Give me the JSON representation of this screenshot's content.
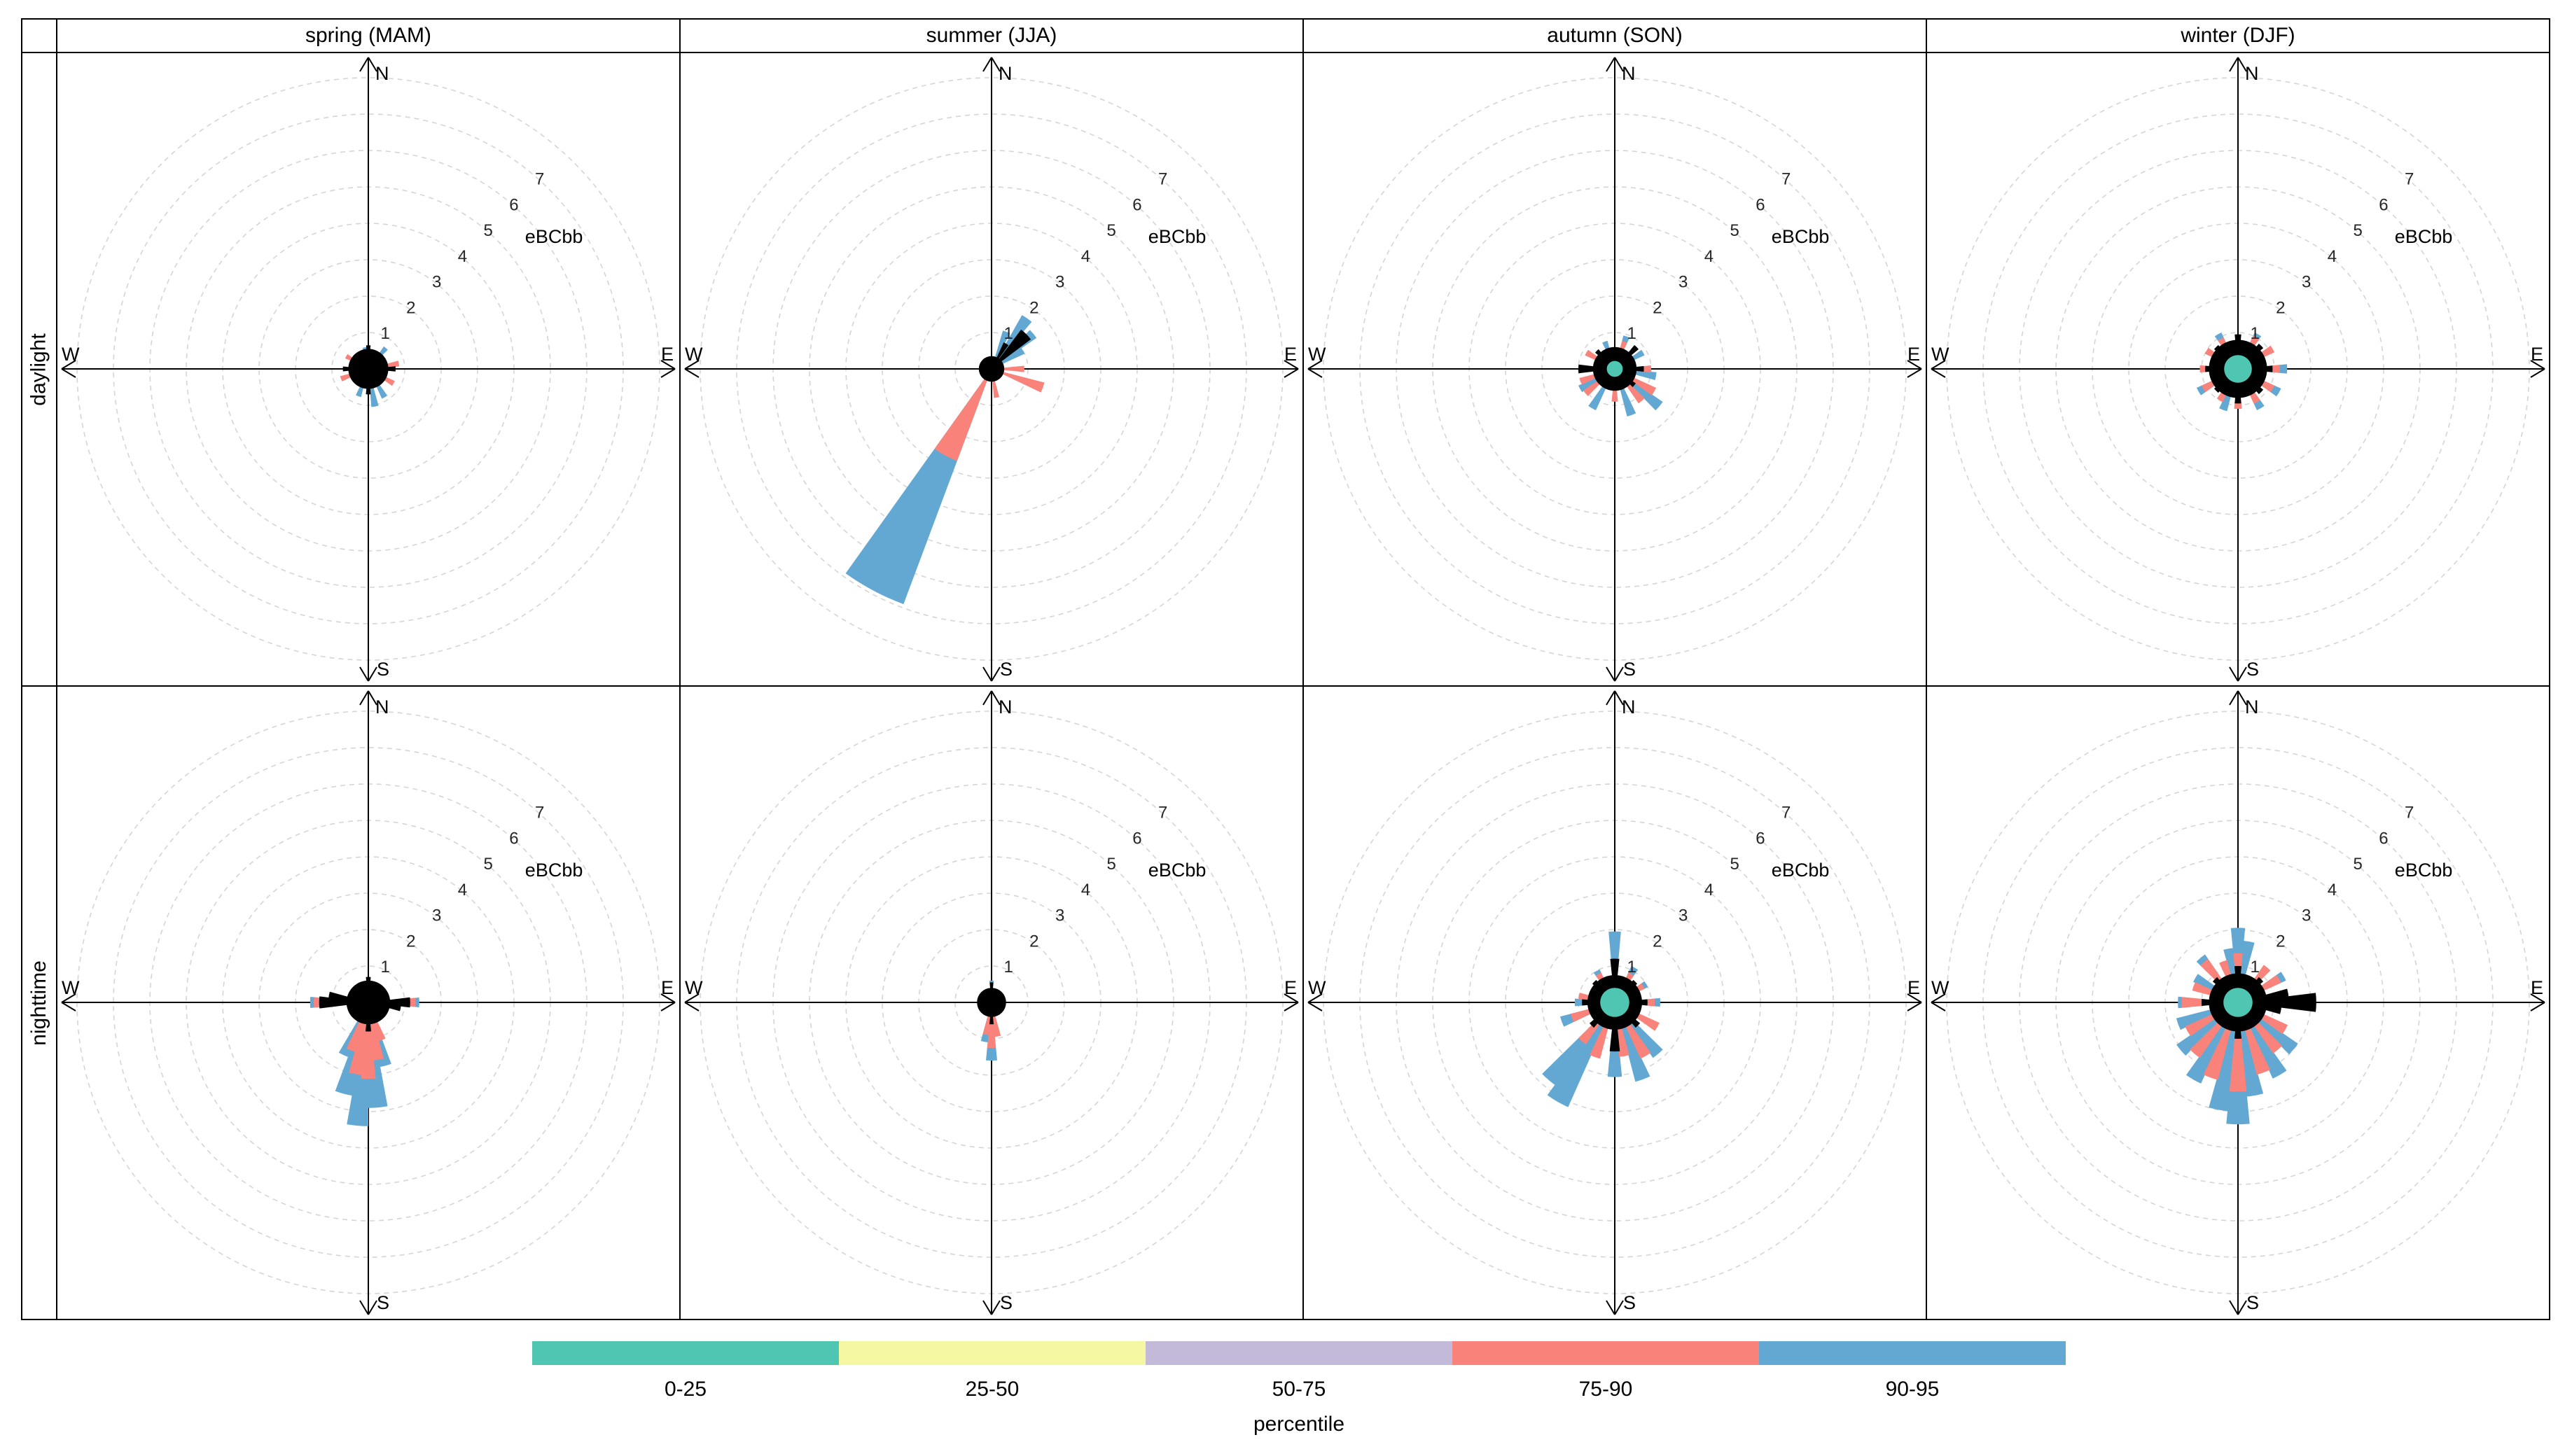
{
  "strip": {
    "cols": [
      "spring (MAM)",
      "summer (JJA)",
      "autumn (SON)",
      "winter (DJF)"
    ],
    "rows": [
      "daylight",
      "nighttime"
    ]
  },
  "axis": {
    "compass": [
      "N",
      "E",
      "S",
      "W"
    ],
    "ticks": [
      "1",
      "2",
      "3",
      "4",
      "5",
      "6",
      "7"
    ],
    "unit_label": "eBCbb"
  },
  "legend": {
    "title": "percentile",
    "entries": [
      {
        "label": "0-25",
        "color": "#4FC6B2"
      },
      {
        "label": "25-50",
        "color": "#F6F7A2"
      },
      {
        "label": "50-75",
        "color": "#C2BAD8"
      },
      {
        "label": "75-90",
        "color": "#F9837A"
      },
      {
        "label": "90-95",
        "color": "#62A8D2"
      }
    ]
  },
  "chart_data": {
    "type": "polar-percentile-rose-grid",
    "pollutant_label": "eBCbb",
    "radial_ticks": [
      1,
      2,
      3,
      4,
      5,
      6,
      7
    ],
    "radial_max": 8,
    "compass": [
      "N",
      "E",
      "S",
      "W"
    ],
    "columns": [
      "spring (MAM)",
      "summer (JJA)",
      "autumn (SON)",
      "winter (DJF)"
    ],
    "rows": [
      "daylight",
      "nighttime"
    ],
    "percentile_bands": [
      {
        "label": "0-25",
        "color": "#4FC6B2"
      },
      {
        "label": "25-50",
        "color": "#F6F7A2"
      },
      {
        "label": "50-75",
        "color": "#C2BAD8"
      },
      {
        "label": "75-90",
        "color": "#F9837A"
      },
      {
        "label": "90-95",
        "color": "#62A8D2"
      }
    ],
    "colors": {
      "teal": "#4FC6B2",
      "yellow": "#F6F7A2",
      "purple": "#C2BAD8",
      "salmon": "#F9837A",
      "blue": "#62A8D2",
      "black": "#000000",
      "grid": "#d5d5d5",
      "tick_text": "#262626"
    },
    "panels": [
      {
        "row": "daylight",
        "column": "spring (MAM)",
        "black_core": 0.55,
        "teal_core": 0,
        "petals": [
          {
            "c": "blue",
            "d": 170,
            "r": 1.05
          },
          {
            "c": "blue",
            "d": 150,
            "r": 0.9
          },
          {
            "c": "blue",
            "d": 40,
            "r": 0.75
          },
          {
            "c": "blue",
            "d": 200,
            "r": 0.8
          },
          {
            "c": "blue",
            "d": 350,
            "r": 0.6
          },
          {
            "c": "salmon",
            "d": 80,
            "r": 0.85
          },
          {
            "c": "salmon",
            "d": 120,
            "r": 0.8
          },
          {
            "c": "salmon",
            "d": 250,
            "r": 0.8
          },
          {
            "c": "salmon",
            "d": 300,
            "r": 0.7
          },
          {
            "c": "black",
            "d": 90,
            "r": 0.75
          },
          {
            "c": "black",
            "d": 270,
            "r": 0.7
          },
          {
            "c": "black",
            "d": 0,
            "r": 0.65
          },
          {
            "c": "black",
            "d": 180,
            "r": 0.7
          }
        ]
      },
      {
        "row": "daylight",
        "column": "summer (JJA)",
        "black_core": 0.35,
        "teal_core": 0,
        "petals": [
          {
            "c": "blue",
            "d": 208,
            "r": 6.9,
            "w": 15
          },
          {
            "c": "blue",
            "d": 35,
            "r": 1.7
          },
          {
            "c": "blue",
            "d": 50,
            "r": 1.5
          },
          {
            "c": "blue",
            "d": 22,
            "r": 1.1
          },
          {
            "c": "blue",
            "d": 60,
            "r": 1.0
          },
          {
            "c": "salmon",
            "d": 208,
            "r": 2.7,
            "w": 15
          },
          {
            "c": "salmon",
            "d": 110,
            "r": 1.5
          },
          {
            "c": "salmon",
            "d": 90,
            "r": 0.9
          },
          {
            "c": "salmon",
            "d": 170,
            "r": 0.8
          },
          {
            "c": "black",
            "d": 45,
            "r": 1.35,
            "w": 16
          },
          {
            "c": "black",
            "d": 30,
            "r": 0.8
          }
        ]
      },
      {
        "row": "daylight",
        "column": "autumn (SON)",
        "black_core": 0.6,
        "teal_core": 0.22,
        "petals": [
          {
            "c": "blue",
            "d": 130,
            "r": 1.6
          },
          {
            "c": "blue",
            "d": 160,
            "r": 1.35
          },
          {
            "c": "blue",
            "d": 210,
            "r": 1.25
          },
          {
            "c": "blue",
            "d": 100,
            "r": 1.15
          },
          {
            "c": "blue",
            "d": 20,
            "r": 0.95
          },
          {
            "c": "blue",
            "d": 340,
            "r": 0.8
          },
          {
            "c": "blue",
            "d": 240,
            "r": 1.1
          },
          {
            "c": "blue",
            "d": 60,
            "r": 0.9
          },
          {
            "c": "salmon",
            "d": 120,
            "r": 1.25
          },
          {
            "c": "salmon",
            "d": 140,
            "r": 1.15
          },
          {
            "c": "salmon",
            "d": 230,
            "r": 1.05
          },
          {
            "c": "salmon",
            "d": 90,
            "r": 1.0
          },
          {
            "c": "salmon",
            "d": 300,
            "r": 0.9
          },
          {
            "c": "salmon",
            "d": 20,
            "r": 0.8
          },
          {
            "c": "salmon",
            "d": 180,
            "r": 0.9
          },
          {
            "c": "salmon",
            "d": 250,
            "r": 1.0
          },
          {
            "c": "black",
            "d": 270,
            "r": 1.0,
            "w": 14
          },
          {
            "c": "black",
            "d": 45,
            "r": 0.85
          },
          {
            "c": "black",
            "d": 90,
            "r": 0.8
          },
          {
            "c": "black",
            "d": 130,
            "r": 0.7
          },
          {
            "c": "black",
            "d": 315,
            "r": 0.7
          }
        ]
      },
      {
        "row": "daylight",
        "column": "winter (DJF)",
        "black_core": 0.8,
        "teal_core": 0.38,
        "petals": [
          {
            "c": "blue",
            "d": 90,
            "r": 1.35
          },
          {
            "c": "blue",
            "d": 150,
            "r": 1.25
          },
          {
            "c": "blue",
            "d": 240,
            "r": 1.25
          },
          {
            "c": "blue",
            "d": 330,
            "r": 1.1
          },
          {
            "c": "blue",
            "d": 30,
            "r": 1.1
          },
          {
            "c": "blue",
            "d": 200,
            "r": 1.2
          },
          {
            "c": "blue",
            "d": 120,
            "r": 1.3
          },
          {
            "c": "salmon",
            "d": 60,
            "r": 1.1
          },
          {
            "c": "salmon",
            "d": 90,
            "r": 1.15
          },
          {
            "c": "salmon",
            "d": 120,
            "r": 1.1
          },
          {
            "c": "salmon",
            "d": 150,
            "r": 1.05
          },
          {
            "c": "salmon",
            "d": 180,
            "r": 1.1
          },
          {
            "c": "salmon",
            "d": 210,
            "r": 1.0
          },
          {
            "c": "salmon",
            "d": 240,
            "r": 1.1
          },
          {
            "c": "salmon",
            "d": 270,
            "r": 1.05
          },
          {
            "c": "salmon",
            "d": 300,
            "r": 1.0
          },
          {
            "c": "salmon",
            "d": 330,
            "r": 0.95
          },
          {
            "c": "salmon",
            "d": 30,
            "r": 1.0
          },
          {
            "c": "black",
            "d": 0,
            "r": 0.95
          },
          {
            "c": "black",
            "d": 45,
            "r": 0.9
          },
          {
            "c": "black",
            "d": 90,
            "r": 0.95
          },
          {
            "c": "black",
            "d": 135,
            "r": 0.9
          },
          {
            "c": "black",
            "d": 180,
            "r": 0.95
          },
          {
            "c": "black",
            "d": 225,
            "r": 0.85
          },
          {
            "c": "black",
            "d": 270,
            "r": 0.9
          },
          {
            "c": "black",
            "d": 315,
            "r": 0.85
          }
        ]
      },
      {
        "row": "nighttime",
        "column": "spring (MAM)",
        "black_core": 0.6,
        "teal_core": 0,
        "petals": [
          {
            "c": "blue",
            "d": 185,
            "r": 3.4,
            "w": 10
          },
          {
            "c": "blue",
            "d": 175,
            "r": 2.9
          },
          {
            "c": "blue",
            "d": 195,
            "r": 2.6
          },
          {
            "c": "blue",
            "d": 165,
            "r": 1.8
          },
          {
            "c": "blue",
            "d": 205,
            "r": 1.6
          },
          {
            "c": "blue",
            "d": 90,
            "r": 1.4
          },
          {
            "c": "blue",
            "d": 270,
            "r": 1.6
          },
          {
            "c": "salmon",
            "d": 180,
            "r": 2.1
          },
          {
            "c": "salmon",
            "d": 190,
            "r": 2.0
          },
          {
            "c": "salmon",
            "d": 170,
            "r": 1.6
          },
          {
            "c": "salmon",
            "d": 200,
            "r": 1.4
          },
          {
            "c": "salmon",
            "d": 160,
            "r": 1.1
          },
          {
            "c": "salmon",
            "d": 90,
            "r": 1.3
          },
          {
            "c": "salmon",
            "d": 270,
            "r": 1.5
          },
          {
            "c": "black",
            "d": 90,
            "r": 1.15,
            "w": 14
          },
          {
            "c": "black",
            "d": 270,
            "r": 1.35,
            "w": 14
          },
          {
            "c": "black",
            "d": 280,
            "r": 1.1
          },
          {
            "c": "black",
            "d": 100,
            "r": 0.9
          },
          {
            "c": "black",
            "d": 0,
            "r": 0.7
          },
          {
            "c": "black",
            "d": 180,
            "r": 0.8
          }
        ]
      },
      {
        "row": "nighttime",
        "column": "summer (JJA)",
        "black_core": 0.4,
        "teal_core": 0,
        "petals": [
          {
            "c": "blue",
            "d": 180,
            "r": 1.6
          },
          {
            "c": "blue",
            "d": 190,
            "r": 1.1
          },
          {
            "c": "blue",
            "d": 0,
            "r": 0.6
          },
          {
            "c": "salmon",
            "d": 180,
            "r": 1.25
          },
          {
            "c": "salmon",
            "d": 170,
            "r": 0.95
          },
          {
            "c": "salmon",
            "d": 190,
            "r": 0.9
          },
          {
            "c": "black",
            "d": 0,
            "r": 0.55
          },
          {
            "c": "black",
            "d": 180,
            "r": 0.6
          }
        ]
      },
      {
        "row": "nighttime",
        "column": "autumn (SON)",
        "black_core": 0.75,
        "teal_core": 0.4,
        "petals": [
          {
            "c": "blue",
            "d": 0,
            "r": 1.95,
            "w": 10
          },
          {
            "c": "blue",
            "d": 210,
            "r": 3.15,
            "w": 12
          },
          {
            "c": "blue",
            "d": 220,
            "r": 2.8
          },
          {
            "c": "blue",
            "d": 160,
            "r": 2.25
          },
          {
            "c": "blue",
            "d": 180,
            "r": 2.05
          },
          {
            "c": "blue",
            "d": 140,
            "r": 1.85
          },
          {
            "c": "blue",
            "d": 250,
            "r": 1.55
          },
          {
            "c": "blue",
            "d": 90,
            "r": 1.25
          },
          {
            "c": "blue",
            "d": 270,
            "r": 1.1
          },
          {
            "c": "blue",
            "d": 60,
            "r": 1.0
          },
          {
            "c": "blue",
            "d": 30,
            "r": 1.1
          },
          {
            "c": "blue",
            "d": 330,
            "r": 1.0
          },
          {
            "c": "salmon",
            "d": 150,
            "r": 1.7
          },
          {
            "c": "salmon",
            "d": 200,
            "r": 1.6
          },
          {
            "c": "salmon",
            "d": 120,
            "r": 1.35
          },
          {
            "c": "salmon",
            "d": 250,
            "r": 1.25
          },
          {
            "c": "salmon",
            "d": 90,
            "r": 1.1
          },
          {
            "c": "salmon",
            "d": 170,
            "r": 1.5
          },
          {
            "c": "salmon",
            "d": 220,
            "r": 1.4
          },
          {
            "c": "salmon",
            "d": 280,
            "r": 1.0
          },
          {
            "c": "salmon",
            "d": 60,
            "r": 0.9
          },
          {
            "c": "salmon",
            "d": 330,
            "r": 0.9
          },
          {
            "c": "salmon",
            "d": 30,
            "r": 0.9
          },
          {
            "c": "black",
            "d": 0,
            "r": 1.2,
            "w": 12
          },
          {
            "c": "black",
            "d": 180,
            "r": 1.35,
            "w": 12
          },
          {
            "c": "black",
            "d": 90,
            "r": 0.9
          },
          {
            "c": "black",
            "d": 270,
            "r": 0.9
          },
          {
            "c": "black",
            "d": 45,
            "r": 0.8
          },
          {
            "c": "black",
            "d": 135,
            "r": 0.9
          },
          {
            "c": "black",
            "d": 225,
            "r": 0.9
          },
          {
            "c": "black",
            "d": 315,
            "r": 0.8
          }
        ]
      },
      {
        "row": "nighttime",
        "column": "winter (DJF)",
        "black_core": 0.8,
        "teal_core": 0.4,
        "petals": [
          {
            "c": "blue",
            "d": 0,
            "r": 2.05
          },
          {
            "c": "blue",
            "d": 10,
            "r": 1.7
          },
          {
            "c": "blue",
            "d": 180,
            "r": 3.35
          },
          {
            "c": "blue",
            "d": 190,
            "r": 3.0
          },
          {
            "c": "blue",
            "d": 170,
            "r": 2.6
          },
          {
            "c": "blue",
            "d": 210,
            "r": 2.45
          },
          {
            "c": "blue",
            "d": 230,
            "r": 2.05
          },
          {
            "c": "blue",
            "d": 250,
            "r": 1.75
          },
          {
            "c": "blue",
            "d": 270,
            "r": 1.65
          },
          {
            "c": "blue",
            "d": 300,
            "r": 1.35
          },
          {
            "c": "blue",
            "d": 90,
            "r": 1.95
          },
          {
            "c": "blue",
            "d": 60,
            "r": 1.45
          },
          {
            "c": "blue",
            "d": 130,
            "r": 2.0
          },
          {
            "c": "blue",
            "d": 150,
            "r": 2.3
          },
          {
            "c": "blue",
            "d": 350,
            "r": 1.5
          },
          {
            "c": "blue",
            "d": 320,
            "r": 1.6
          },
          {
            "c": "salmon",
            "d": 180,
            "r": 2.45
          },
          {
            "c": "salmon",
            "d": 200,
            "r": 2.2
          },
          {
            "c": "salmon",
            "d": 160,
            "r": 2.05
          },
          {
            "c": "salmon",
            "d": 220,
            "r": 1.85
          },
          {
            "c": "salmon",
            "d": 140,
            "r": 1.7
          },
          {
            "c": "salmon",
            "d": 270,
            "r": 1.55
          },
          {
            "c": "salmon",
            "d": 90,
            "r": 1.6
          },
          {
            "c": "salmon",
            "d": 40,
            "r": 1.25
          },
          {
            "c": "salmon",
            "d": 320,
            "r": 1.45
          },
          {
            "c": "salmon",
            "d": 0,
            "r": 1.35
          },
          {
            "c": "salmon",
            "d": 60,
            "r": 1.3
          },
          {
            "c": "salmon",
            "d": 240,
            "r": 1.6
          },
          {
            "c": "salmon",
            "d": 120,
            "r": 1.5
          },
          {
            "c": "salmon",
            "d": 290,
            "r": 1.3
          },
          {
            "c": "salmon",
            "d": 340,
            "r": 1.2
          },
          {
            "c": "black",
            "d": 90,
            "r": 2.15,
            "w": 14
          },
          {
            "c": "black",
            "d": 80,
            "r": 1.4
          },
          {
            "c": "black",
            "d": 100,
            "r": 1.2
          },
          {
            "c": "black",
            "d": 0,
            "r": 1.0
          },
          {
            "c": "black",
            "d": 270,
            "r": 1.0
          },
          {
            "c": "black",
            "d": 45,
            "r": 0.9
          },
          {
            "c": "black",
            "d": 180,
            "r": 1.0
          },
          {
            "c": "black",
            "d": 315,
            "r": 0.9
          }
        ]
      }
    ]
  }
}
